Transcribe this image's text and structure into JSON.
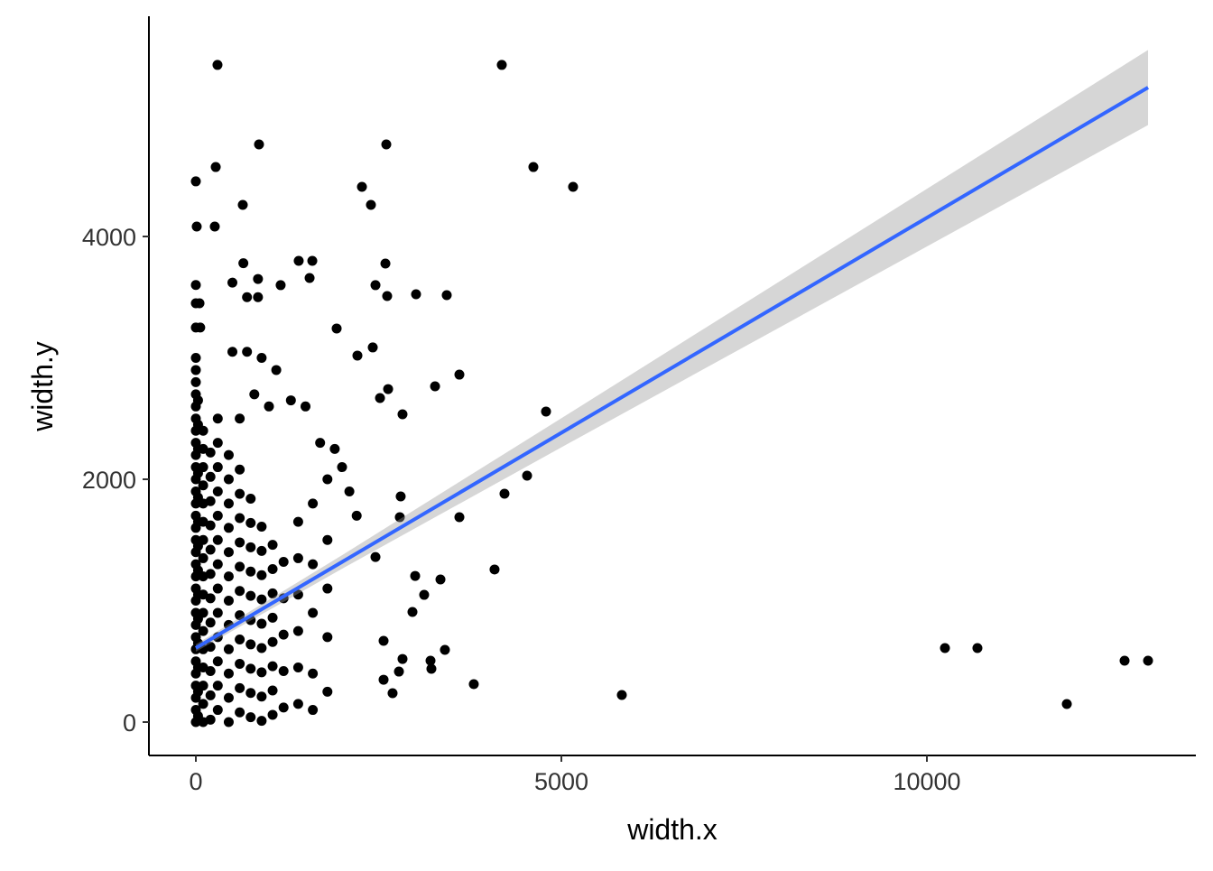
{
  "chart_data": {
    "type": "scatter",
    "x_label": "width.x",
    "y_label": "width.y",
    "xlim": [
      -642,
      13679
    ],
    "ylim": [
      -275,
      5814
    ],
    "xticks": [
      0,
      5000,
      10000
    ],
    "yticks": [
      0,
      2000,
      4000
    ],
    "series": [
      {
        "type": "scatter",
        "color": "#000000",
        "x": [
          0,
          0,
          0,
          0,
          0,
          0,
          0,
          0,
          0,
          0,
          0,
          0,
          0,
          0,
          0,
          0,
          0,
          0,
          0,
          0,
          0,
          0,
          0,
          0,
          0,
          0,
          0,
          0,
          0,
          0,
          0,
          30,
          30,
          30,
          30,
          30,
          30,
          30,
          30,
          30,
          30,
          30,
          30,
          30,
          30,
          100,
          100,
          100,
          100,
          100,
          100,
          100,
          100,
          100,
          100,
          100,
          100,
          100,
          100,
          100,
          100,
          100,
          200,
          200,
          200,
          200,
          200,
          200,
          200,
          200,
          200,
          200,
          200,
          200,
          300,
          300,
          300,
          300,
          300,
          300,
          300,
          300,
          300,
          300,
          300,
          300,
          300,
          450,
          450,
          450,
          450,
          450,
          450,
          450,
          450,
          450,
          450,
          450,
          450,
          600,
          600,
          600,
          600,
          600,
          600,
          600,
          600,
          600,
          600,
          600,
          750,
          750,
          750,
          750,
          750,
          750,
          750,
          750,
          750,
          750,
          900,
          900,
          900,
          900,
          900,
          900,
          900,
          900,
          900,
          1050,
          1050,
          1050,
          1050,
          1050,
          1050,
          1050,
          1050,
          1200,
          1200,
          1200,
          1200,
          1200,
          1400,
          1400,
          1400,
          1400,
          1400,
          1400,
          1600,
          1600,
          1600,
          1600,
          1600,
          1800,
          1800,
          1800,
          1800,
          1800,
          2000,
          2100,
          2200,
          1900,
          1700,
          1500,
          1300,
          1100,
          900,
          700,
          500,
          600,
          800,
          1000,
          296,
          4185,
          864,
          2605,
          272,
          4617,
          5160,
          0,
          2272,
          2395,
          642,
          12,
          259,
          10247,
          10691,
          12704,
          13025,
          11914,
          5827,
          3802,
          4086,
          4222,
          4531,
          4790,
          3605,
          3605,
          3432,
          3012,
          3272,
          2827,
          2790,
          2802,
          3000,
          3346,
          3123,
          2963,
          3407,
          3210,
          3222,
          2827,
          2778,
          2691,
          2568,
          2457,
          2568,
          2617,
          2593,
          2457,
          1407,
          1593,
          1556,
          1160,
          2420,
          1926,
          2210,
          2630,
          2519,
          0,
          0,
          50,
          0,
          60,
          650,
          500,
          850,
          700,
          850
        ],
        "values": [
          0,
          100,
          200,
          300,
          400,
          500,
          600,
          700,
          800,
          900,
          1000,
          1100,
          1200,
          1300,
          1400,
          1500,
          1600,
          1700,
          1800,
          1900,
          2000,
          2100,
          2200,
          2300,
          2400,
          2500,
          2600,
          2700,
          2800,
          2900,
          3000,
          50,
          250,
          450,
          650,
          850,
          1050,
          1250,
          1450,
          1650,
          1850,
          2050,
          2250,
          2450,
          2650,
          0,
          150,
          300,
          450,
          600,
          750,
          900,
          1050,
          1200,
          1350,
          1500,
          1650,
          1800,
          1950,
          2100,
          2250,
          2400,
          20,
          220,
          420,
          620,
          820,
          1020,
          1220,
          1420,
          1620,
          1820,
          2020,
          2220,
          100,
          300,
          500,
          700,
          900,
          1100,
          1300,
          1500,
          1700,
          1900,
          2100,
          2300,
          2500,
          0,
          200,
          400,
          600,
          800,
          1000,
          1200,
          1400,
          1600,
          1800,
          2000,
          2200,
          80,
          280,
          480,
          680,
          880,
          1080,
          1280,
          1480,
          1680,
          1880,
          2080,
          40,
          240,
          440,
          640,
          840,
          1040,
          1240,
          1440,
          1640,
          1840,
          10,
          210,
          410,
          610,
          810,
          1010,
          1210,
          1410,
          1610,
          60,
          260,
          460,
          660,
          860,
          1060,
          1260,
          1460,
          120,
          420,
          720,
          1020,
          1320,
          150,
          450,
          750,
          1050,
          1350,
          1650,
          100,
          400,
          900,
          1300,
          1800,
          250,
          700,
          1100,
          1500,
          2000,
          2100,
          1900,
          1700,
          2250,
          2300,
          2600,
          2650,
          2900,
          3000,
          3050,
          3050,
          2500,
          2700,
          2600,
          5413,
          5413,
          4758,
          4758,
          4572,
          4572,
          4409,
          4454,
          4409,
          4260,
          4260,
          4082,
          4082,
          610,
          610,
          506,
          506,
          149,
          223,
          312,
          1257,
          1881,
          2030,
          2558,
          2862,
          1688,
          3517,
          3524,
          2766,
          2535,
          1688,
          1859,
          1204,
          1175,
          1048,
          907,
          595,
          506,
          439,
          520,
          416,
          238,
          669,
          1360,
          349,
          3509,
          3777,
          3599,
          3799,
          3799,
          3658,
          3599,
          3086,
          3242,
          3019,
          2743,
          2669,
          3600,
          3450,
          3450,
          3250,
          3250,
          3780,
          3620,
          3650,
          3500,
          3500
        ]
      },
      {
        "type": "line",
        "color": "#3366ff",
        "band_color": "#999999",
        "x": [
          0,
          2000,
          5000,
          8000,
          13025
        ],
        "values": [
          610,
          1319,
          2383,
          3446,
          5227
        ],
        "lower": [
          580,
          1263,
          2263,
          3256,
          4918
        ],
        "upper": [
          640,
          1375,
          2503,
          3636,
          5536
        ]
      }
    ]
  }
}
